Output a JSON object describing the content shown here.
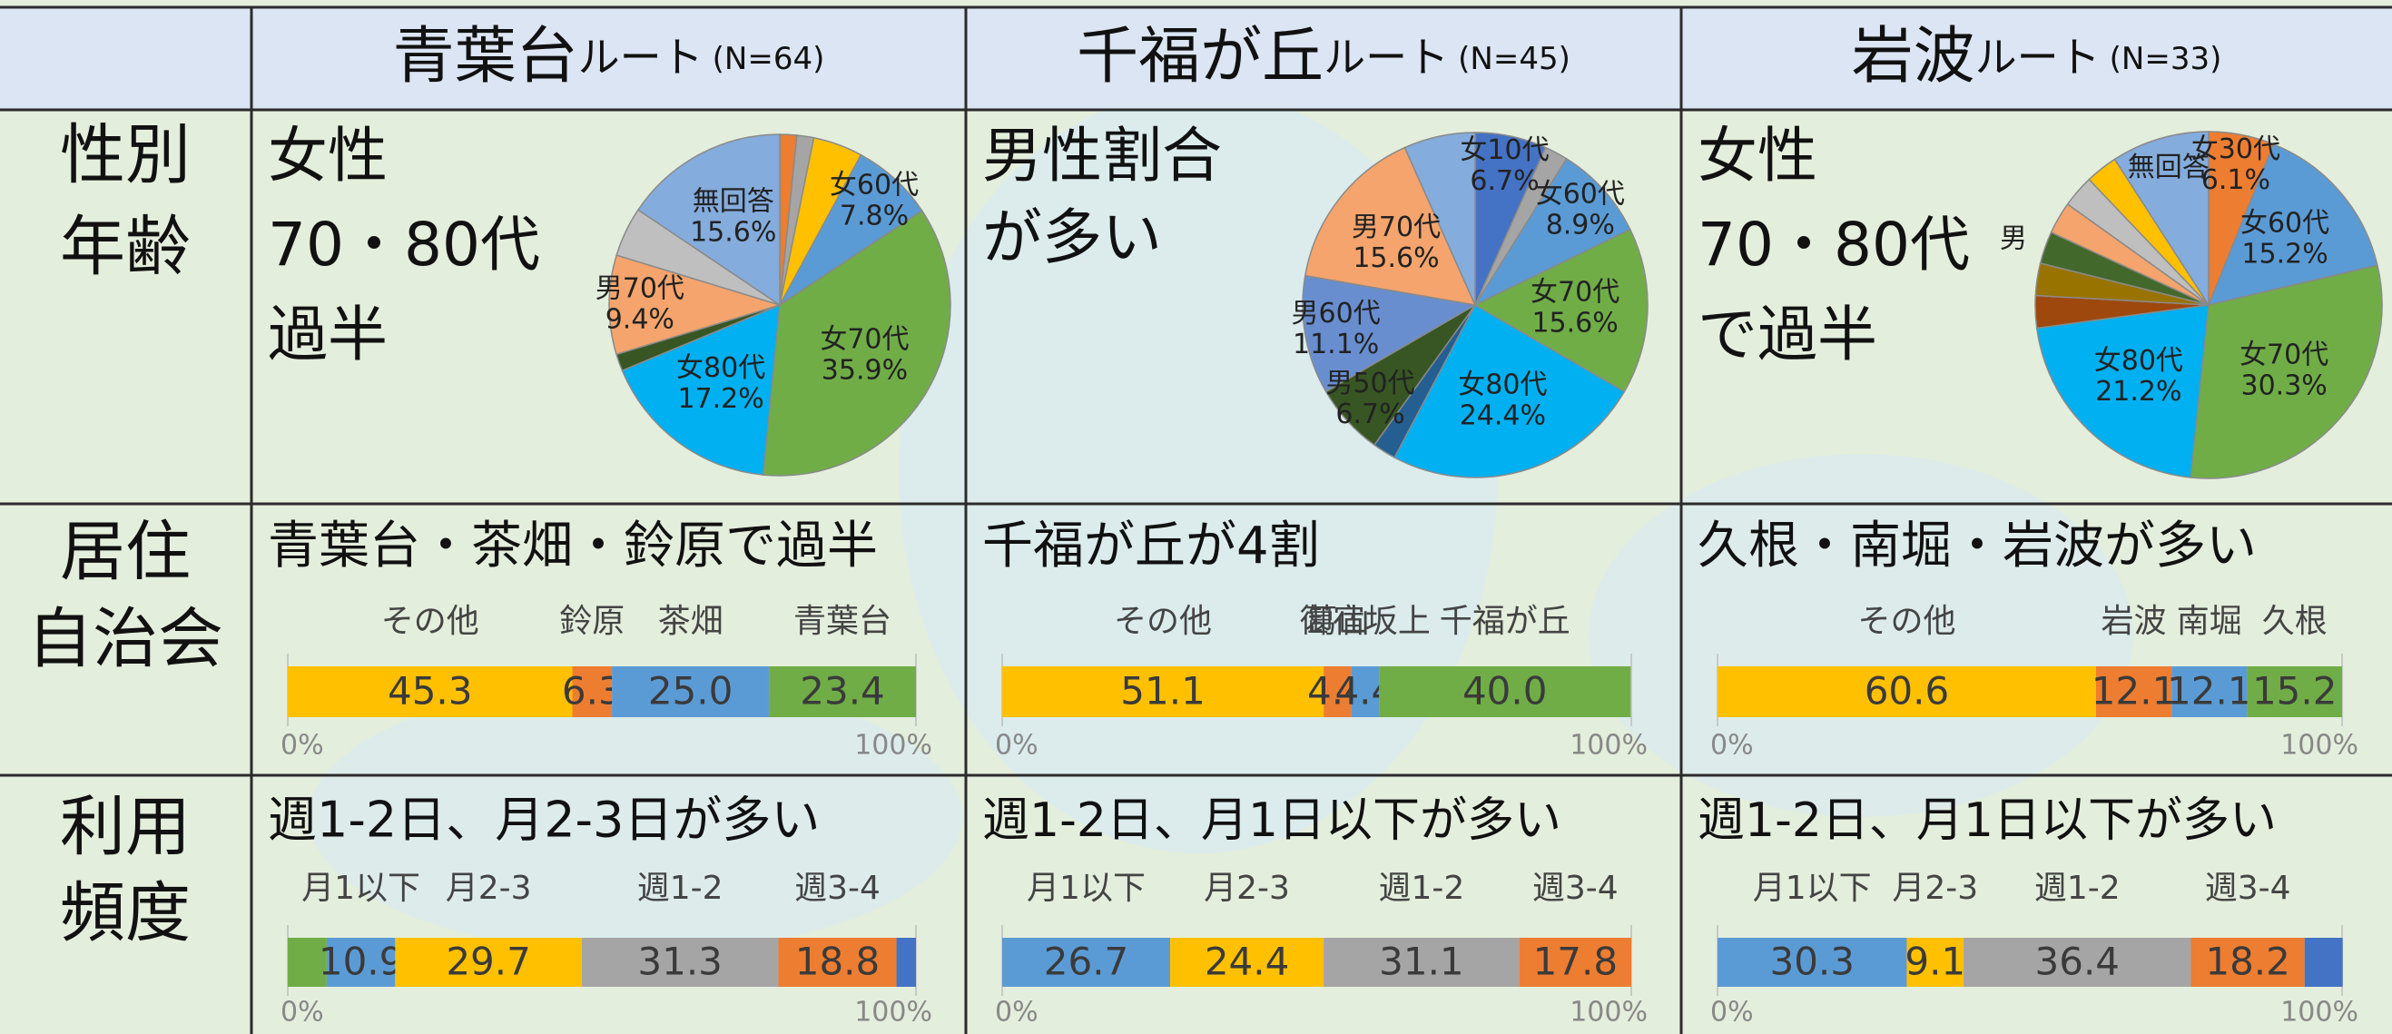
{
  "table": {
    "columns": [
      {
        "name": "青葉台",
        "suffix": "ルート",
        "n": "(N=64)"
      },
      {
        "name": "千福が丘",
        "suffix": "ルート",
        "n": "(N=45)"
      },
      {
        "name": "岩波",
        "suffix": "ルート",
        "n": "(N=33)"
      }
    ],
    "rows": [
      {
        "label": [
          "性別",
          "年齢"
        ],
        "cells": [
          [
            "女性",
            "70・80代",
            "過半"
          ],
          [
            "男性割合",
            "が多い"
          ],
          [
            "女性",
            "70・80代",
            "で過半"
          ]
        ]
      },
      {
        "label": [
          "居住",
          "自治会"
        ],
        "cells": [
          [
            "青葉台・茶畑・鈴原で過半"
          ],
          [
            "千福が丘が4割"
          ],
          [
            "久根・南堀・岩波が多い"
          ]
        ]
      },
      {
        "label": [
          "利用",
          "頻度"
        ],
        "cells": [
          [
            "週1-2日、月2-3日が多い"
          ],
          [
            "週1-2日、月1日以下が多い"
          ],
          [
            "週1-2日、月1日以下が多い"
          ]
        ]
      }
    ]
  },
  "chart_data": [
    {
      "type": "pie",
      "categories": [
        null,
        null,
        null,
        "女60代",
        "女70代",
        "女80代",
        null,
        "男70代",
        null,
        "無回答"
      ],
      "values": [
        1.6,
        1.6,
        4.7,
        7.8,
        35.9,
        17.2,
        1.6,
        9.4,
        4.7,
        15.6
      ],
      "value_labels": [
        null,
        null,
        null,
        "7.8%",
        "35.9%",
        "17.2%",
        null,
        "9.4%",
        null,
        "15.6%"
      ],
      "colors": [
        "#ed7d31",
        "#a5a5a5",
        "#ffc000",
        "#5b9bd5",
        "#70ad47",
        "#00b0f0",
        "#375623",
        "#f4a46c",
        "#bfbfbf",
        "#84acdc"
      ]
    },
    {
      "type": "pie",
      "categories": [
        "女10代",
        null,
        "女60代",
        "女70代",
        "女80代",
        null,
        "男50代",
        "男60代",
        "男70代",
        null
      ],
      "values": [
        6.7,
        2.2,
        8.9,
        15.6,
        24.4,
        2.2,
        6.7,
        11.1,
        15.6,
        6.7
      ],
      "value_labels": [
        "6.7%",
        null,
        "8.9%",
        "15.6%",
        "24.4%",
        null,
        "6.7%",
        "11.1%",
        "15.6%",
        null
      ],
      "colors": [
        "#4472c4",
        "#a5a5a5",
        "#5b9bd5",
        "#70ad47",
        "#00b0f0",
        "#255e91",
        "#375623",
        "#698ed0",
        "#f4a46c",
        "#84acdc"
      ]
    },
    {
      "type": "pie",
      "categories": [
        "女30代",
        "女60代",
        "女70代",
        "女80代",
        null,
        null,
        null,
        null,
        null,
        null,
        "無回答"
      ],
      "values": [
        6.1,
        15.2,
        30.3,
        21.2,
        3.0,
        3.0,
        3.0,
        3.0,
        3.0,
        3.0,
        9.1
      ],
      "value_labels": [
        "6.1%",
        "15.2%",
        "30.3%",
        "21.2%",
        null,
        null,
        null,
        null,
        null,
        null,
        null
      ],
      "colors": [
        "#ed7d31",
        "#5b9bd5",
        "#70ad47",
        "#00b0f0",
        "#9e480e",
        "#997300",
        "#43682b",
        "#f4a46c",
        "#bfbfbf",
        "#ffc000",
        "#84acdc"
      ],
      "annotations": [
        "男"
      ]
    },
    {
      "type": "bar",
      "orientation": "horizontal",
      "stacked": true,
      "xlim": [
        0,
        100
      ],
      "xticks": [
        {
          "value": 0,
          "label": "0%"
        },
        {
          "value": 100,
          "label": "100%"
        }
      ],
      "series": [
        {
          "name": "その他",
          "color": "#ffc000",
          "values": [
            45.3
          ],
          "value_labels": [
            "45.3"
          ]
        },
        {
          "name": "鈴原",
          "color": "#ed7d31",
          "values": [
            6.3
          ],
          "value_labels": [
            "6.3"
          ]
        },
        {
          "name": "茶畑",
          "color": "#5b9bd5",
          "values": [
            25
          ],
          "value_labels": [
            "25.0"
          ]
        },
        {
          "name": "青葉台",
          "color": "#70ad47",
          "values": [
            23.4
          ],
          "value_labels": [
            "23.4"
          ]
        }
      ]
    },
    {
      "type": "bar",
      "orientation": "horizontal",
      "stacked": true,
      "xlim": [
        0,
        100
      ],
      "xticks": [
        {
          "value": 0,
          "label": "0%"
        },
        {
          "value": 100,
          "label": "100%"
        }
      ],
      "series": [
        {
          "name": "その他",
          "color": "#ffc000",
          "values": [
            51.1
          ],
          "value_labels": [
            "51.1"
          ]
        },
        {
          "name": "葛山",
          "color": "#ed7d31",
          "values": [
            4.4
          ],
          "value_labels": [
            "4.4"
          ]
        },
        {
          "name": "御宿坂上",
          "color": "#5b9bd5",
          "values": [
            4.4
          ],
          "value_labels": [
            "4.4"
          ]
        },
        {
          "name": "千福が丘",
          "color": "#70ad47",
          "values": [
            40
          ],
          "value_labels": [
            "40.0"
          ]
        }
      ]
    },
    {
      "type": "bar",
      "orientation": "horizontal",
      "stacked": true,
      "xlim": [
        0,
        100
      ],
      "xticks": [
        {
          "value": 0,
          "label": "0%"
        },
        {
          "value": 100,
          "label": "100%"
        }
      ],
      "series": [
        {
          "name": "その他",
          "color": "#ffc000",
          "values": [
            60.6
          ],
          "value_labels": [
            "60.6"
          ]
        },
        {
          "name": "岩波",
          "color": "#ed7d31",
          "values": [
            12.1
          ],
          "value_labels": [
            "12.1"
          ]
        },
        {
          "name": "南堀",
          "color": "#5b9bd5",
          "values": [
            12.1
          ],
          "value_labels": [
            "12.1"
          ]
        },
        {
          "name": "久根",
          "color": "#70ad47",
          "values": [
            15.2
          ],
          "value_labels": [
            "15.2"
          ]
        }
      ]
    },
    {
      "type": "bar",
      "orientation": "horizontal",
      "stacked": true,
      "xlim": [
        0,
        100
      ],
      "xticks": [
        {
          "value": 0,
          "label": "0%"
        },
        {
          "value": 100,
          "label": "100%"
        }
      ],
      "series": [
        {
          "name": null,
          "color": "#70ad47",
          "values": [
            6.2
          ],
          "value_labels": [
            null
          ]
        },
        {
          "name": "月1以下",
          "color": "#5b9bd5",
          "values": [
            10.9
          ],
          "value_labels": [
            "10.9"
          ]
        },
        {
          "name": "月2-3",
          "color": "#ffc000",
          "values": [
            29.7
          ],
          "value_labels": [
            "29.7"
          ]
        },
        {
          "name": "週1-2",
          "color": "#a5a5a5",
          "values": [
            31.3
          ],
          "value_labels": [
            "31.3"
          ]
        },
        {
          "name": "週3-4",
          "color": "#ed7d31",
          "values": [
            18.8
          ],
          "value_labels": [
            "18.8"
          ]
        },
        {
          "name": null,
          "color": "#4472c4",
          "values": [
            3.1
          ],
          "value_labels": [
            null
          ]
        }
      ]
    },
    {
      "type": "bar",
      "orientation": "horizontal",
      "stacked": true,
      "xlim": [
        0,
        100
      ],
      "xticks": [
        {
          "value": 0,
          "label": "0%"
        },
        {
          "value": 100,
          "label": "100%"
        }
      ],
      "series": [
        {
          "name": "月1以下",
          "color": "#5b9bd5",
          "values": [
            26.7
          ],
          "value_labels": [
            "26.7"
          ]
        },
        {
          "name": "月2-3",
          "color": "#ffc000",
          "values": [
            24.4
          ],
          "value_labels": [
            "24.4"
          ]
        },
        {
          "name": "週1-2",
          "color": "#a5a5a5",
          "values": [
            31.1
          ],
          "value_labels": [
            "31.1"
          ]
        },
        {
          "name": "週3-4",
          "color": "#ed7d31",
          "values": [
            17.8
          ],
          "value_labels": [
            "17.8"
          ]
        }
      ]
    },
    {
      "type": "bar",
      "orientation": "horizontal",
      "stacked": true,
      "xlim": [
        0,
        100
      ],
      "xticks": [
        {
          "value": 0,
          "label": "0%"
        },
        {
          "value": 100,
          "label": "100%"
        }
      ],
      "series": [
        {
          "name": "月1以下",
          "color": "#5b9bd5",
          "values": [
            30.3
          ],
          "value_labels": [
            "30.3"
          ]
        },
        {
          "name": "月2-3",
          "color": "#ffc000",
          "values": [
            9.1
          ],
          "value_labels": [
            "9.1"
          ]
        },
        {
          "name": "週1-2",
          "color": "#a5a5a5",
          "values": [
            36.4
          ],
          "value_labels": [
            "36.4"
          ]
        },
        {
          "name": "週3-4",
          "color": "#ed7d31",
          "values": [
            18.2
          ],
          "value_labels": [
            "18.2"
          ]
        },
        {
          "name": null,
          "color": "#4472c4",
          "values": [
            6.1
          ],
          "value_labels": [
            null
          ]
        }
      ]
    }
  ]
}
